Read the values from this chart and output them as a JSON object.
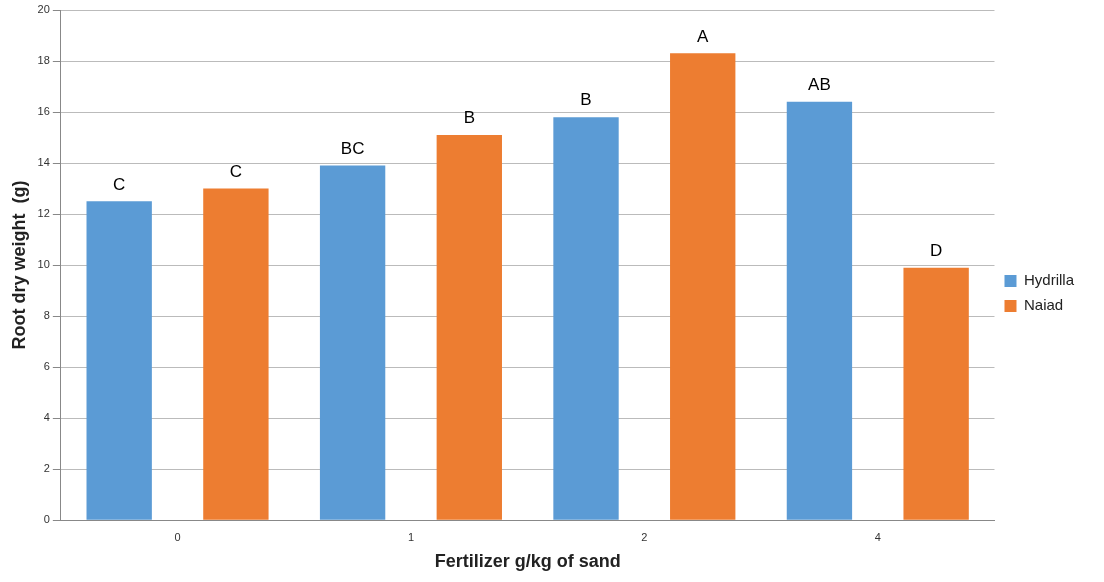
{
  "chart_data": {
    "type": "bar",
    "xlabel": "Fertilizer g/kg of sand",
    "ylabel": "Root dry weight  (g)",
    "categories": [
      "0",
      "1",
      "2",
      "4"
    ],
    "series": [
      {
        "name": "Hydrilla",
        "color": "#5b9bd5",
        "values": [
          12.5,
          13.9,
          15.8,
          16.4
        ],
        "value_labels": [
          "C",
          "BC",
          "B",
          "AB"
        ]
      },
      {
        "name": "Naiad",
        "color": "#ed7d31",
        "values": [
          13.0,
          15.1,
          18.3,
          9.9
        ],
        "value_labels": [
          "C",
          "B",
          "A",
          "D"
        ]
      }
    ],
    "ylim": [
      0,
      20
    ],
    "yticks": [
      0,
      2,
      4,
      6,
      8,
      10,
      12,
      14,
      16,
      18,
      20
    ],
    "grid": "y",
    "legend": "right"
  }
}
